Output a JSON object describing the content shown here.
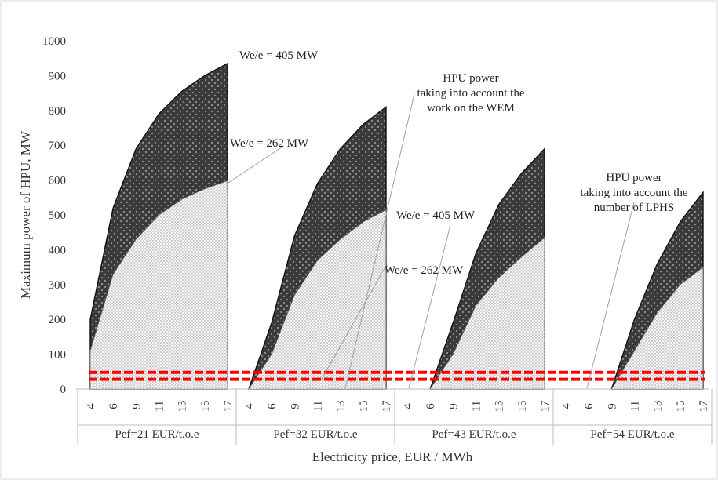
{
  "chart_data": {
    "type": "area",
    "xlabel": "Electricity price, EUR / MWh",
    "ylabel": "Maximum power of HPU, MW",
    "ylim": [
      0,
      1000
    ],
    "yticks": [
      "0",
      "100",
      "200",
      "300",
      "400",
      "500",
      "600",
      "700",
      "800",
      "900",
      "1000"
    ],
    "grid": false,
    "x_ticks": [
      "4",
      "6",
      "9",
      "11",
      "13",
      "15",
      "17"
    ],
    "groups": [
      {
        "label": "Pef=21 EUR/t.o.e",
        "lower": [
          110,
          330,
          430,
          500,
          545,
          575,
          598
        ],
        "upper": [
          200,
          520,
          690,
          790,
          855,
          900,
          935
        ]
      },
      {
        "label": "Pef=32 EUR/t.o.e",
        "lower": [
          0,
          100,
          270,
          370,
          430,
          480,
          515
        ],
        "upper": [
          0,
          190,
          440,
          590,
          690,
          760,
          810
        ]
      },
      {
        "label": "Pef=43 EUR/t.o.e",
        "lower": [
          0,
          0,
          100,
          240,
          320,
          380,
          435
        ],
        "upper": [
          0,
          0,
          190,
          390,
          530,
          620,
          690
        ]
      },
      {
        "label": "Pef=54 EUR/t.o.e",
        "lower": [
          0,
          0,
          0,
          110,
          220,
          300,
          350
        ],
        "upper": [
          0,
          0,
          0,
          200,
          360,
          480,
          565
        ]
      }
    ],
    "threshold_lines": [
      28,
      48
    ],
    "annotations": [
      {
        "text": "We/e = 405 MW"
      },
      {
        "text": "We/e = 262 MW"
      },
      {
        "lines": [
          "HPU power",
          "taking into account the",
          "work on the WEM"
        ]
      },
      {
        "text": "We/e = 405 MW"
      },
      {
        "text": "We/e = 262 MW"
      },
      {
        "lines": [
          "HPU power",
          "taking into account the",
          "number of LPHS"
        ]
      }
    ],
    "colors": {
      "upper_fill": "#3a3a3a",
      "lower_fill": "#f2f2f2",
      "outline": "#111111",
      "threshold": "#ff0000",
      "leader": "#a0a0a0"
    }
  }
}
